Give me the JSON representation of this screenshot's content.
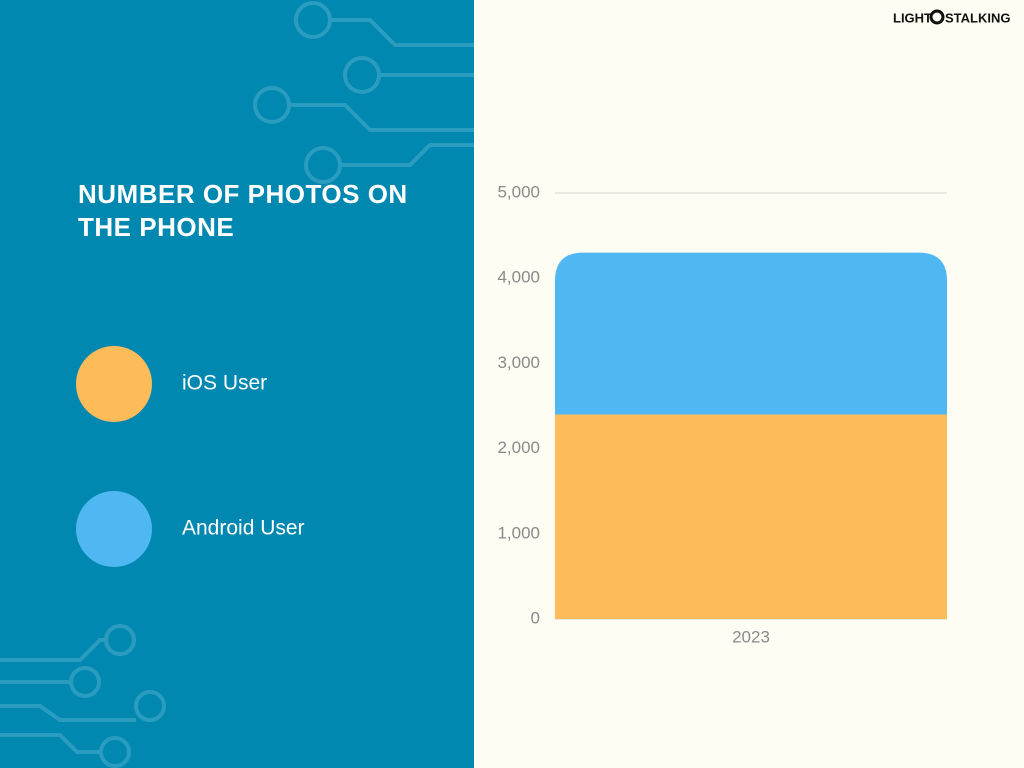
{
  "brand": {
    "left": "LIGHT",
    "right": "STALKING"
  },
  "chart_data": {
    "type": "stacked_bar",
    "title": "NUMBER OF PHOTOS ON THE PHONE",
    "categories": [
      "2023"
    ],
    "series": [
      {
        "name": "iOS User",
        "color": "#fdbb5a",
        "values": [
          2400
        ]
      },
      {
        "name": "Android User",
        "color": "#4fb8f3",
        "values": [
          1900
        ]
      }
    ],
    "ylim": [
      0,
      5000
    ],
    "yticks": [
      0,
      {
        "value": 1000,
        "label": "1,000"
      },
      {
        "value": 2000,
        "label": "2,000"
      },
      {
        "value": 3000,
        "label": "3,000"
      },
      {
        "value": 4000,
        "label": "4,000"
      },
      {
        "value": 5000,
        "label": "5,000"
      }
    ],
    "grid": true,
    "legend": "left"
  }
}
